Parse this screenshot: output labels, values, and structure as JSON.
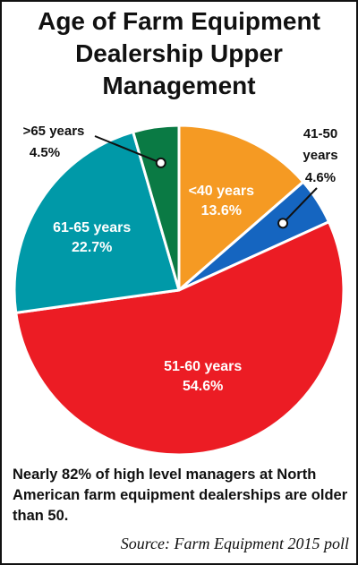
{
  "chart_data": {
    "type": "pie",
    "title": [
      "Age of Farm Equipment",
      "Dealership Upper",
      "Management"
    ],
    "slices": [
      {
        "label": "<40 years",
        "value_label": "13.6%",
        "value": 13.6,
        "color": "#f59a23"
      },
      {
        "label": "41-50 years",
        "value_label": "4.6%",
        "value": 4.6,
        "color": "#1565c0"
      },
      {
        "label": "51-60 years",
        "value_label": "54.6%",
        "value": 54.6,
        "color": "#ec1c24"
      },
      {
        "label": "61-65 years",
        "value_label": "22.7%",
        "value": 22.7,
        "color": "#0099a8"
      },
      {
        "label": ">65 years",
        "value_label": "4.5%",
        "value": 4.5,
        "color": "#0a7a44"
      }
    ],
    "callouts": {
      "41-50": [
        "41-50",
        "years",
        "4.6%"
      ],
      "over65": [
        ">65 years",
        "4.5%"
      ]
    }
  },
  "caption": "Nearly 82% of high level managers at North American farm equipment dealerships are older than 50.",
  "source": "Source: Farm Equipment 2015 poll"
}
